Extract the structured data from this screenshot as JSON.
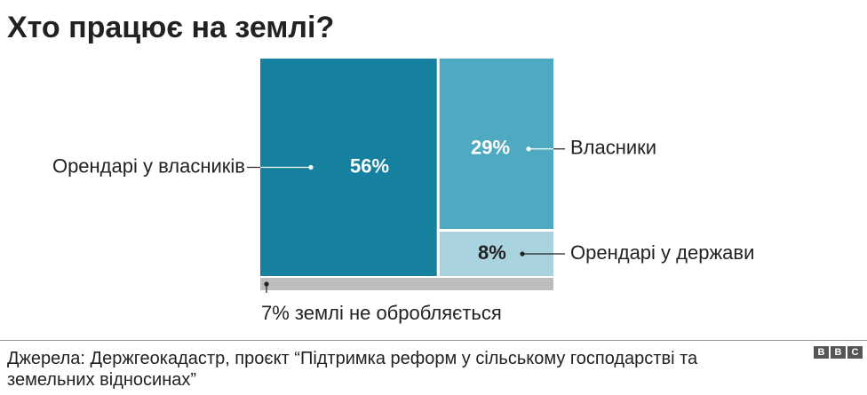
{
  "title": "Хто працює на землі?",
  "chart_data": {
    "type": "treemap",
    "title": "Хто працює на землі?",
    "categories": [
      "Орендарі у власників",
      "Власники",
      "Орендарі у держави",
      "7% землі не обробляється"
    ],
    "values": [
      56,
      29,
      8,
      7
    ],
    "value_labels": [
      "56%",
      "29%",
      "8%",
      "7%"
    ],
    "unit": "%",
    "colors": [
      "#16809f",
      "#4ea9c1",
      "#a8d3df",
      "#bdbdbd"
    ],
    "value_text_colors": [
      "#ffffff",
      "#ffffff",
      "#222222",
      "#222222"
    ],
    "grid": false
  },
  "footer": {
    "source": "Джерела: Держгеокадастр, проєкт “Підтримка реформ у сільському господарстві та земельних відносинах”",
    "logo_letters": [
      "B",
      "B",
      "C"
    ]
  }
}
